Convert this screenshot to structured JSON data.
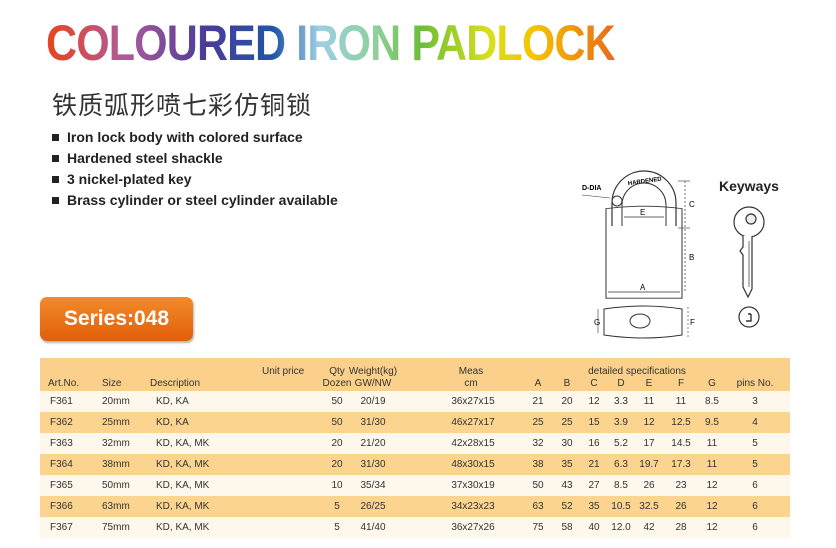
{
  "title": "COLOURED IRON PADLOCK",
  "subtitle": "铁质弧形喷七彩仿铜锁",
  "features": [
    "Iron lock body with colored surface",
    "Hardened steel shackle",
    "3 nickel-plated key",
    "Brass cylinder or steel cylinder available"
  ],
  "series_label": "Series:048",
  "diagram": {
    "labels": {
      "d_dia": "D-DIA",
      "hardened": "HARDENED",
      "a": "A",
      "b": "B",
      "c": "C",
      "e": "E",
      "f": "F",
      "g": "G"
    }
  },
  "keyways_label": "Keyways",
  "table": {
    "headers": {
      "art_no": "Art.No.",
      "size": "Size",
      "description": "Description",
      "unit_price": "Unit price",
      "qty": "Qty",
      "qty_unit": "Dozen",
      "weight": "Weight(kg)",
      "weight_unit": "GW/NW",
      "meas": "Meas",
      "meas_unit": "cm",
      "detailed": "detailed specifications",
      "a": "A",
      "b": "B",
      "c": "C",
      "d": "D",
      "e": "E",
      "f": "F",
      "g": "G",
      "pins": "pins No."
    },
    "rows": [
      {
        "art": "F361",
        "size": "20mm",
        "desc": "KD, KA",
        "qty": "50",
        "weight": "20/19",
        "meas": "36x27x15",
        "a": "21",
        "b": "20",
        "c": "12",
        "d": "3.3",
        "e": "11",
        "f": "11",
        "g": "8.5",
        "pins": "3"
      },
      {
        "art": "F362",
        "size": "25mm",
        "desc": "KD, KA",
        "qty": "50",
        "weight": "31/30",
        "meas": "46x27x17",
        "a": "25",
        "b": "25",
        "c": "15",
        "d": "3.9",
        "e": "12",
        "f": "12.5",
        "g": "9.5",
        "pins": "4"
      },
      {
        "art": "F363",
        "size": "32mm",
        "desc": "KD, KA, MK",
        "qty": "20",
        "weight": "21/20",
        "meas": "42x28x15",
        "a": "32",
        "b": "30",
        "c": "16",
        "d": "5.2",
        "e": "17",
        "f": "14.5",
        "g": "11",
        "pins": "5"
      },
      {
        "art": "F364",
        "size": "38mm",
        "desc": "KD, KA, MK",
        "qty": "20",
        "weight": "31/30",
        "meas": "48x30x15",
        "a": "38",
        "b": "35",
        "c": "21",
        "d": "6.3",
        "e": "19.7",
        "f": "17.3",
        "g": "11",
        "pins": "5"
      },
      {
        "art": "F365",
        "size": "50mm",
        "desc": "KD, KA, MK",
        "qty": "10",
        "weight": "35/34",
        "meas": "37x30x19",
        "a": "50",
        "b": "43",
        "c": "27",
        "d": "8.5",
        "e": "26",
        "f": "23",
        "g": "12",
        "pins": "6"
      },
      {
        "art": "F366",
        "size": "63mm",
        "desc": "KD, KA, MK",
        "qty": "5",
        "weight": "26/25",
        "meas": "34x23x23",
        "a": "63",
        "b": "52",
        "c": "35",
        "d": "10.5",
        "e": "32.5",
        "f": "26",
        "g": "12",
        "pins": "6"
      },
      {
        "art": "F367",
        "size": "75mm",
        "desc": "KD, KA, MK",
        "qty": "5",
        "weight": "41/40",
        "meas": "36x27x26",
        "a": "75",
        "b": "58",
        "c": "40",
        "d": "12.0",
        "e": "42",
        "f": "28",
        "g": "12",
        "pins": "6"
      }
    ]
  },
  "colors": {
    "header_bg": "#fbd08a",
    "row_alt": "#fbd48f",
    "series_badge": "#e8650a"
  }
}
